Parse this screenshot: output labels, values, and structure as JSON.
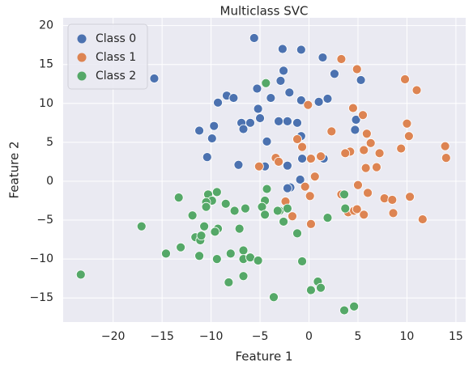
{
  "chart_data": {
    "type": "scatter",
    "title": "Multiclass SVC",
    "xlabel": "Feature 1",
    "ylabel": "Feature 2",
    "xlim": [
      -25.1,
      16
    ],
    "ylim": [
      -18.1,
      21
    ],
    "xticks": [
      {
        "value": -20,
        "label": "−20"
      },
      {
        "value": -15,
        "label": "−15"
      },
      {
        "value": -10,
        "label": "−10"
      },
      {
        "value": -5,
        "label": "−5"
      },
      0,
      5,
      10,
      15
    ],
    "yticks": [
      {
        "value": -15,
        "label": "−15"
      },
      {
        "value": -10,
        "label": "−10"
      },
      {
        "value": -5,
        "label": "−5"
      },
      0,
      5,
      10,
      15,
      20
    ],
    "grid": true,
    "legend": "upper left",
    "series": [
      {
        "name": "Class 0",
        "color": "#4c72b0",
        "x": [
          -15.8,
          -5.6,
          -2.7,
          -0.8,
          -2.6,
          1.4,
          2.6,
          5.3,
          -2.9,
          -2.0,
          -5.3,
          -3.9,
          -9.3,
          -8.4,
          -7.7,
          -11.2,
          -9.7,
          -3.1,
          -5.2,
          -6.9,
          -6.0,
          -5.0,
          -6.7,
          -0.8,
          1.9,
          1.0,
          -1.2,
          -2.2,
          -4.3,
          -0.8,
          -0.7,
          4.8,
          4.7,
          -10.4,
          -7.2,
          -4.5,
          -2.2,
          -1.9,
          -0.9,
          1.5,
          -9.9,
          -2.2
        ],
        "y": [
          13.2,
          18.4,
          17.0,
          16.9,
          14.2,
          15.9,
          13.8,
          13.0,
          12.9,
          11.4,
          11.9,
          10.7,
          10.1,
          11.0,
          10.7,
          6.5,
          7.1,
          7.7,
          9.3,
          7.5,
          7.5,
          8.1,
          6.7,
          10.4,
          10.6,
          10.2,
          7.5,
          7.7,
          5.1,
          5.8,
          2.9,
          7.9,
          6.6,
          3.1,
          2.1,
          1.9,
          2.0,
          -0.8,
          0.2,
          2.9,
          5.5,
          -0.9
        ]
      },
      {
        "name": "Class 1",
        "color": "#dd8452",
        "x": [
          3.3,
          4.9,
          9.8,
          11.0,
          -0.1,
          4.5,
          5.5,
          10.0,
          10.2,
          2.3,
          5.9,
          6.3,
          -1.2,
          -0.7,
          5.6,
          4.2,
          3.7,
          7.2,
          9.4,
          13.9,
          14.0,
          -3.4,
          -3.1,
          1.2,
          0.2,
          5.8,
          6.9,
          -5.1,
          0.6,
          -0.4,
          0.1,
          3.3,
          5.0,
          6.0,
          7.7,
          8.5,
          10.3,
          -2.4,
          -1.7,
          0.2,
          4.0,
          4.6,
          4.9,
          5.6,
          8.6,
          11.6
        ],
        "y": [
          15.7,
          14.4,
          13.1,
          11.7,
          9.8,
          9.4,
          8.5,
          7.4,
          5.8,
          6.4,
          6.1,
          4.9,
          5.4,
          4.4,
          4.0,
          3.8,
          3.6,
          3.6,
          4.2,
          4.5,
          3.0,
          3.0,
          2.5,
          3.2,
          2.9,
          1.7,
          1.8,
          1.9,
          0.6,
          -0.7,
          -1.9,
          -1.7,
          -0.5,
          -1.5,
          -2.2,
          -2.4,
          -2.0,
          -2.6,
          -4.5,
          -5.5,
          -4.0,
          -3.8,
          -3.6,
          -4.3,
          -4.1,
          -4.9
        ]
      },
      {
        "name": "Class 2",
        "color": "#55a868",
        "x": [
          -4.4,
          -23.3,
          -17.1,
          -13.3,
          -10.3,
          -9.9,
          -9.4,
          -10.5,
          -8.5,
          -7.6,
          -6.5,
          -10.5,
          -11.9,
          -10.7,
          -11.6,
          -11.1,
          -11.0,
          -9.3,
          -9.6,
          -7.1,
          -13.1,
          -14.6,
          -11.2,
          -8.0,
          -9.4,
          -6.7,
          -6.7,
          -6.0,
          -5.2,
          -8.2,
          -6.7,
          -4.3,
          -4.5,
          -4.8,
          -4.5,
          -3.0,
          -2.2,
          -3.2,
          -2.6,
          -1.2,
          1.9,
          3.6,
          3.7,
          -0.7,
          0.9,
          1.2,
          0.2,
          -3.6,
          3.6,
          4.6
        ],
        "y": [
          12.6,
          -12.0,
          -5.8,
          -2.1,
          -1.7,
          -2.5,
          -1.4,
          -2.7,
          -2.9,
          -3.8,
          -3.5,
          -3.3,
          -4.4,
          -5.8,
          -7.2,
          -7.6,
          -7.0,
          -6.1,
          -6.5,
          -6.1,
          -8.5,
          -9.3,
          -9.6,
          -9.3,
          -10.0,
          -8.9,
          -10.0,
          -9.8,
          -10.2,
          -13.0,
          -12.2,
          -1.0,
          -2.5,
          -3.3,
          -4.3,
          -3.8,
          -3.5,
          -3.8,
          -5.2,
          -6.7,
          -4.7,
          -1.7,
          -3.5,
          -10.3,
          -12.9,
          -13.7,
          -14.0,
          -14.9,
          -16.6,
          -16.1
        ]
      }
    ]
  }
}
